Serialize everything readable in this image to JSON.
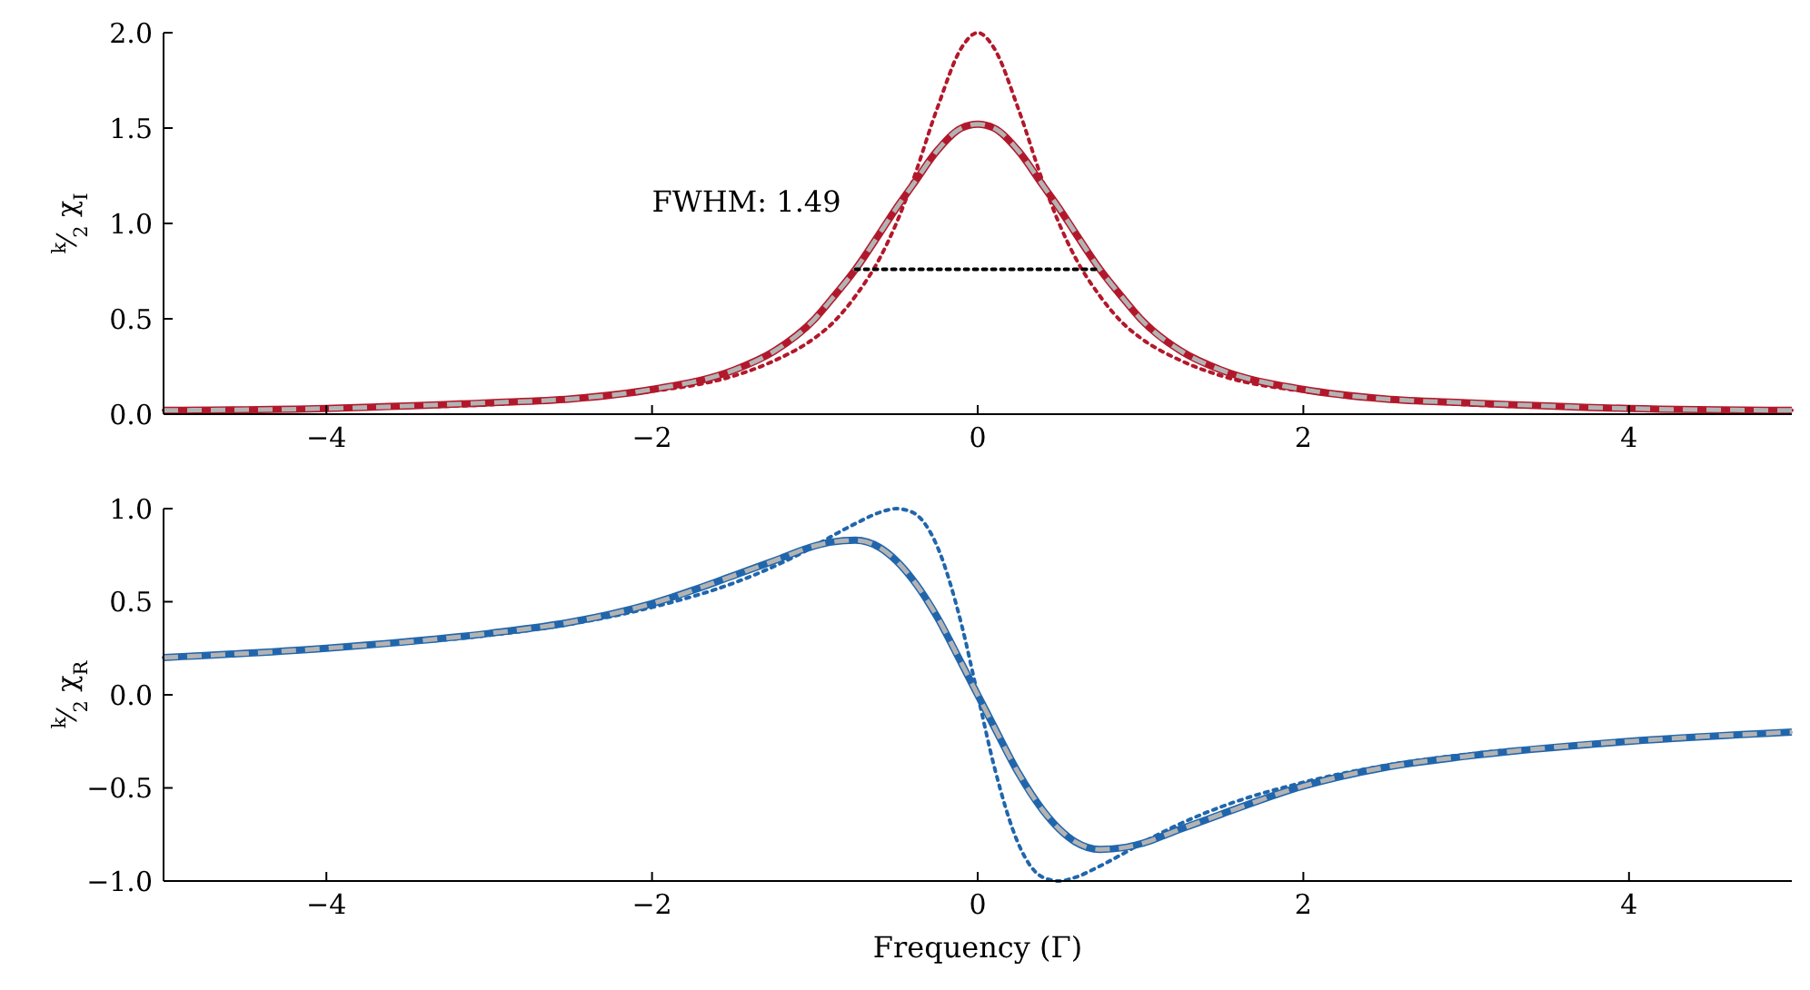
{
  "chart_data": [
    {
      "type": "line",
      "ylabel": "$^{k}$⁄$_{2}$ χ$_{I}$",
      "xlim": [
        -5,
        5
      ],
      "xticks": [
        -4,
        -2,
        0,
        2,
        4
      ],
      "ylim": [
        0,
        2
      ],
      "yticks": [
        {
          "value": 0,
          "label": "0.0"
        },
        {
          "value": 0.5,
          "label": "0.5"
        },
        {
          "value": 1,
          "label": "1.0"
        },
        {
          "value": 1.5,
          "label": "1.5"
        },
        {
          "value": 2,
          "label": "2.0"
        }
      ],
      "x": [
        -5,
        -4,
        -3,
        -2.5,
        -2,
        -1.5,
        -1.25,
        -1,
        -0.9,
        -0.75,
        -0.6,
        -0.5,
        -0.4,
        -0.25,
        -0.1,
        0,
        0.1,
        0.25,
        0.4,
        0.5,
        0.6,
        0.75,
        0.9,
        1,
        1.25,
        1.5,
        2,
        2.5,
        3,
        4,
        5
      ],
      "series": [
        {
          "color": "#b2182b",
          "line_style": "dotted",
          "values": [
            0.02,
            0.03,
            0.05,
            0.08,
            0.12,
            0.2,
            0.28,
            0.4,
            0.47,
            0.62,
            0.82,
            1.0,
            1.22,
            1.6,
            1.92,
            2.0,
            1.92,
            1.6,
            1.22,
            1.0,
            0.82,
            0.62,
            0.47,
            0.4,
            0.28,
            0.2,
            0.12,
            0.08,
            0.05,
            0.03,
            0.02
          ]
        },
        {
          "color": "#b2182b",
          "line_style": "solid",
          "values": [
            0.02,
            0.03,
            0.06,
            0.08,
            0.13,
            0.23,
            0.33,
            0.5,
            0.6,
            0.76,
            0.95,
            1.08,
            1.2,
            1.38,
            1.5,
            1.52,
            1.5,
            1.38,
            1.2,
            1.08,
            0.95,
            0.76,
            0.6,
            0.5,
            0.33,
            0.23,
            0.13,
            0.08,
            0.06,
            0.03,
            0.02
          ]
        },
        {
          "color": "#b3b3b3",
          "line_style": "dashed",
          "values": [
            0.02,
            0.03,
            0.06,
            0.08,
            0.13,
            0.23,
            0.33,
            0.5,
            0.6,
            0.76,
            0.95,
            1.08,
            1.2,
            1.38,
            1.5,
            1.52,
            1.5,
            1.38,
            1.2,
            1.08,
            0.95,
            0.76,
            0.6,
            0.5,
            0.33,
            0.23,
            0.13,
            0.08,
            0.06,
            0.03,
            0.02
          ]
        },
        {
          "color": "#000000",
          "line_style": "dotted",
          "x": [
            -0.75,
            0.75
          ],
          "values": [
            0.76,
            0.76
          ]
        }
      ],
      "annotations": [
        "FWHM: 1.49"
      ]
    },
    {
      "type": "line",
      "ylabel": "$^{k}$⁄$_{2}$ χ$_{R}$",
      "xlabel": "Frequency (Γ)",
      "xlim": [
        -5,
        5
      ],
      "xticks": [
        -4,
        -2,
        0,
        2,
        4
      ],
      "ylim": [
        -1,
        1
      ],
      "yticks": [
        {
          "value": -1,
          "label": "−1.0"
        },
        {
          "value": -0.5,
          "label": "−0.5"
        },
        {
          "value": 0,
          "label": "0.0"
        },
        {
          "value": 0.5,
          "label": "0.5"
        },
        {
          "value": 1,
          "label": "1.0"
        }
      ],
      "x": [
        -5,
        -4,
        -3,
        -2.5,
        -2,
        -1.5,
        -1.25,
        -1,
        -0.9,
        -0.75,
        -0.6,
        -0.5,
        -0.4,
        -0.25,
        -0.1,
        0,
        0.1,
        0.25,
        0.4,
        0.5,
        0.6,
        0.75,
        0.9,
        1,
        1.25,
        1.5,
        2,
        2.5,
        3,
        4,
        5
      ],
      "series": [
        {
          "color": "#2166ac",
          "line_style": "dotted",
          "values": [
            0.2,
            0.25,
            0.32,
            0.38,
            0.47,
            0.6,
            0.69,
            0.8,
            0.85,
            0.92,
            0.98,
            1.0,
            0.98,
            0.8,
            0.38,
            0,
            -0.38,
            -0.8,
            -0.98,
            -1.0,
            -0.98,
            -0.92,
            -0.85,
            -0.8,
            -0.69,
            -0.6,
            -0.47,
            -0.38,
            -0.32,
            -0.25,
            -0.2
          ]
        },
        {
          "color": "#2166ac",
          "line_style": "solid",
          "values": [
            0.2,
            0.25,
            0.33,
            0.39,
            0.49,
            0.64,
            0.72,
            0.8,
            0.82,
            0.83,
            0.79,
            0.72,
            0.62,
            0.42,
            0.17,
            0,
            -0.17,
            -0.42,
            -0.62,
            -0.72,
            -0.79,
            -0.83,
            -0.82,
            -0.8,
            -0.72,
            -0.64,
            -0.49,
            -0.39,
            -0.33,
            -0.25,
            -0.2
          ]
        },
        {
          "color": "#b3b3b3",
          "line_style": "dashed",
          "values": [
            0.2,
            0.25,
            0.33,
            0.39,
            0.49,
            0.64,
            0.72,
            0.8,
            0.82,
            0.83,
            0.79,
            0.72,
            0.62,
            0.42,
            0.17,
            0,
            -0.17,
            -0.42,
            -0.62,
            -0.72,
            -0.79,
            -0.83,
            -0.82,
            -0.8,
            -0.72,
            -0.64,
            -0.49,
            -0.39,
            -0.33,
            -0.25,
            -0.2
          ]
        }
      ]
    }
  ]
}
